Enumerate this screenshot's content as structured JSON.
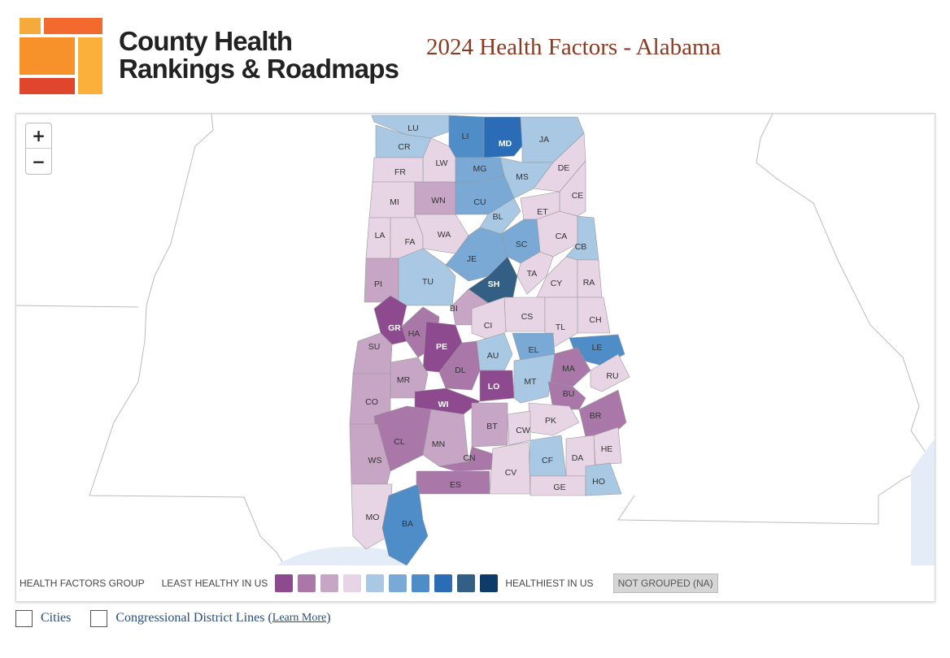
{
  "header": {
    "logo_line1": "County Health",
    "logo_line2": "Rankings & Roadmaps",
    "title": "2024 Health Factors - Alabama"
  },
  "map": {
    "zoom_in": "+",
    "zoom_out": "−",
    "colors": {
      "c1": "#8e4a8e",
      "c2": "#a978a8",
      "c3": "#c6a5c5",
      "c4": "#e7d5e5",
      "c5": "#a9c8e4",
      "c6": "#7aa9d6",
      "c7": "#4f8dc8",
      "c8": "#2a6cb5",
      "c9": "#345f85",
      "c10": "#0f3b69",
      "na": "#d6d6d6",
      "water": "#e4edf7",
      "land": "#ffffff",
      "border": "#999999"
    },
    "counties": [
      {
        "code": "LU",
        "level": 5
      },
      {
        "code": "LI",
        "level": 7
      },
      {
        "code": "MD",
        "level": 8
      },
      {
        "code": "JA",
        "level": 5
      },
      {
        "code": "CR",
        "level": 5
      },
      {
        "code": "LW",
        "level": 4
      },
      {
        "code": "MG",
        "level": 6
      },
      {
        "code": "DE",
        "level": 4
      },
      {
        "code": "FR",
        "level": 4
      },
      {
        "code": "MS",
        "level": 5
      },
      {
        "code": "CE",
        "level": 4
      },
      {
        "code": "MI",
        "level": 4
      },
      {
        "code": "WN",
        "level": 3
      },
      {
        "code": "CU",
        "level": 6
      },
      {
        "code": "BL",
        "level": 5
      },
      {
        "code": "ET",
        "level": 4
      },
      {
        "code": "LA",
        "level": 4
      },
      {
        "code": "FA",
        "level": 4
      },
      {
        "code": "WA",
        "level": 4
      },
      {
        "code": "CA",
        "level": 4
      },
      {
        "code": "SC",
        "level": 6
      },
      {
        "code": "CB",
        "level": 5
      },
      {
        "code": "JE",
        "level": 6
      },
      {
        "code": "PI",
        "level": 3
      },
      {
        "code": "TU",
        "level": 5
      },
      {
        "code": "SH",
        "level": 9
      },
      {
        "code": "TA",
        "level": 4
      },
      {
        "code": "CY",
        "level": 4
      },
      {
        "code": "RA",
        "level": 4
      },
      {
        "code": "BI",
        "level": 3
      },
      {
        "code": "CS",
        "level": 4
      },
      {
        "code": "CH",
        "level": 4
      },
      {
        "code": "GR",
        "level": 1
      },
      {
        "code": "HA",
        "level": 2
      },
      {
        "code": "CI",
        "level": 4
      },
      {
        "code": "TL",
        "level": 4
      },
      {
        "code": "PE",
        "level": 1
      },
      {
        "code": "SU",
        "level": 3
      },
      {
        "code": "AU",
        "level": 5
      },
      {
        "code": "EL",
        "level": 6
      },
      {
        "code": "LE",
        "level": 7
      },
      {
        "code": "DL",
        "level": 2
      },
      {
        "code": "MA",
        "level": 2
      },
      {
        "code": "RU",
        "level": 4
      },
      {
        "code": "MR",
        "level": 3
      },
      {
        "code": "LO",
        "level": 1
      },
      {
        "code": "MT",
        "level": 5
      },
      {
        "code": "CO",
        "level": 3
      },
      {
        "code": "WI",
        "level": 1
      },
      {
        "code": "BU",
        "level": 2
      },
      {
        "code": "BR",
        "level": 2
      },
      {
        "code": "PK",
        "level": 4
      },
      {
        "code": "CW",
        "level": 4
      },
      {
        "code": "BT",
        "level": 3
      },
      {
        "code": "CL",
        "level": 2
      },
      {
        "code": "MN",
        "level": 3
      },
      {
        "code": "HE",
        "level": 4
      },
      {
        "code": "WS",
        "level": 3
      },
      {
        "code": "CN",
        "level": 2
      },
      {
        "code": "CF",
        "level": 5
      },
      {
        "code": "DA",
        "level": 4
      },
      {
        "code": "CV",
        "level": 4
      },
      {
        "code": "ES",
        "level": 2
      },
      {
        "code": "GE",
        "level": 4
      },
      {
        "code": "HO",
        "level": 5
      },
      {
        "code": "MO",
        "level": 4
      },
      {
        "code": "BA",
        "level": 7
      }
    ]
  },
  "legend": {
    "group_label": "HEALTH FACTORS GROUP",
    "least_label": "LEAST HEALTHY IN US",
    "healthiest_label": "HEALTHIEST IN US",
    "na_label": "NOT GROUPED (NA)"
  },
  "options": {
    "cities_label": "Cities",
    "districts_label": "Congressional District Lines (",
    "learn_more": "Learn More",
    "close_paren": ")"
  }
}
